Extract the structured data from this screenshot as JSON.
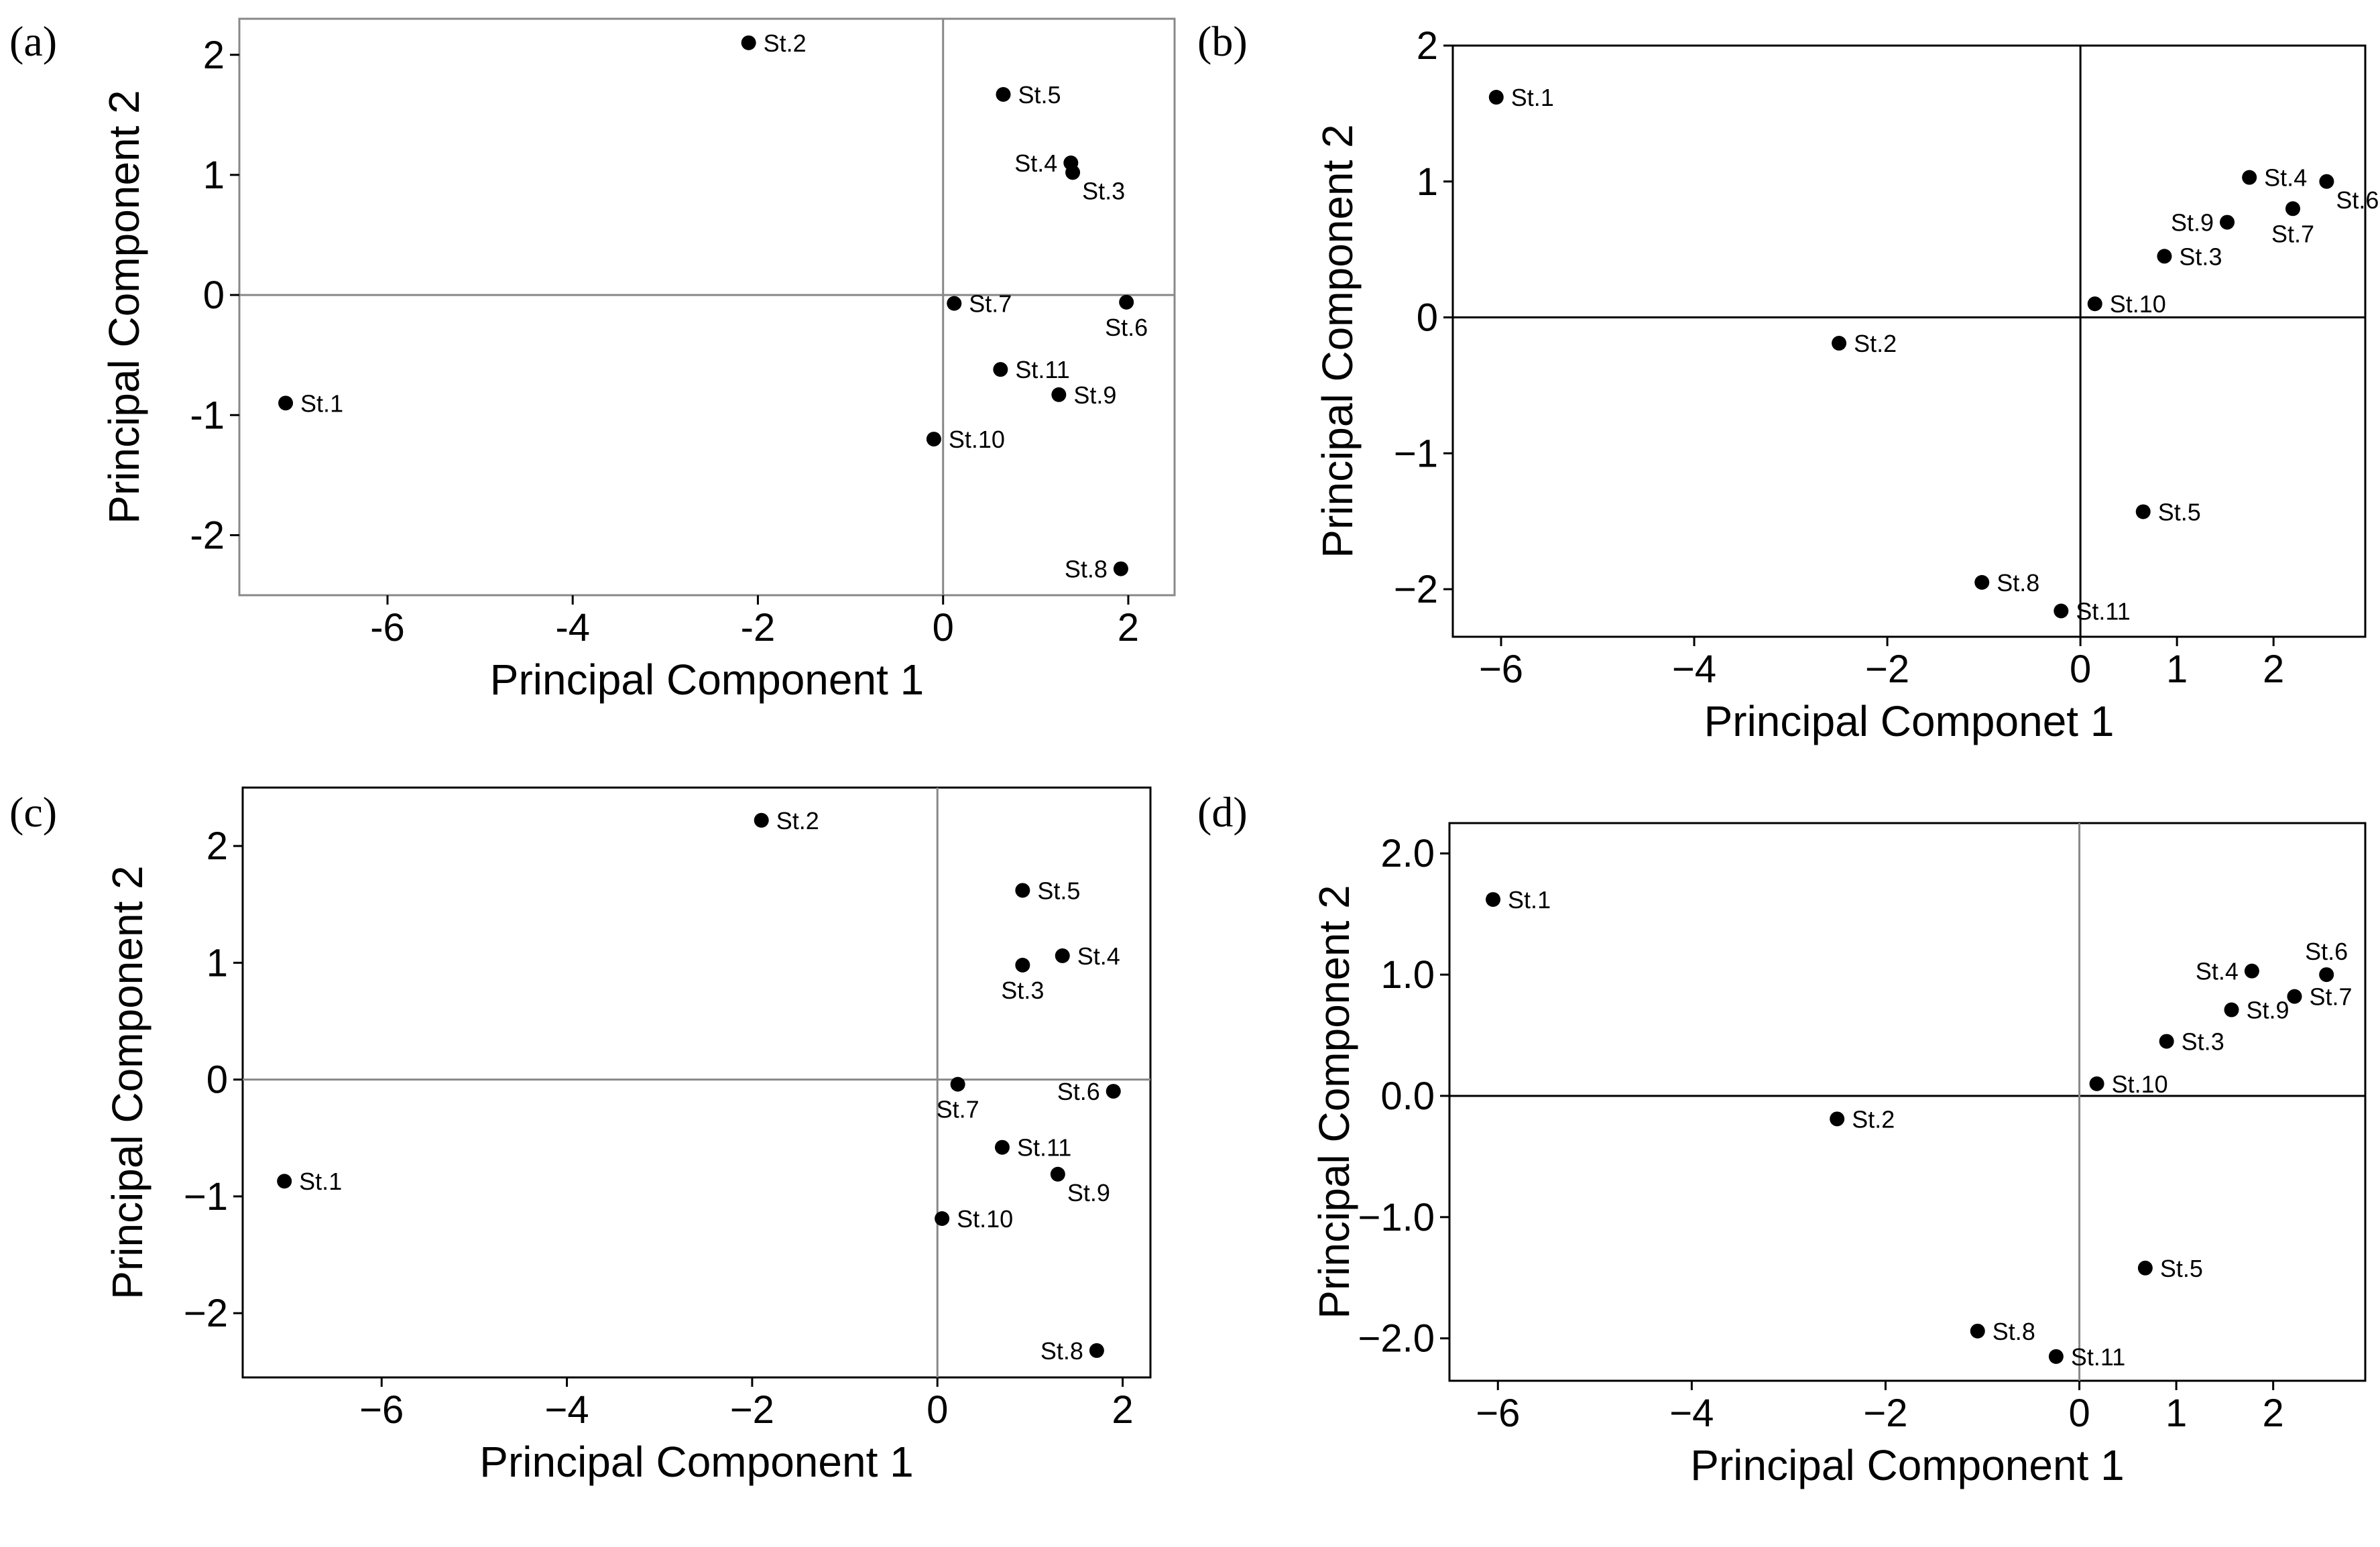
{
  "chart_data": [
    {
      "type": "scatter",
      "panel_label": "(a)",
      "xlabel": "Principal Component 1",
      "ylabel": "Principal Component 2",
      "xlim": [
        -7.6,
        2.5
      ],
      "ylim": [
        -2.5,
        2.3
      ],
      "xticks": [
        -6,
        -4,
        -2,
        0,
        2
      ],
      "yticks": [
        -2,
        -1,
        0,
        1,
        2
      ],
      "xtick_labels": [
        "-6",
        "-4",
        "-2",
        "0",
        "2"
      ],
      "ytick_labels": [
        "-2",
        "-1",
        "0",
        "1",
        "2"
      ],
      "frame_color": "#888888",
      "ref_line_color": "#888888",
      "points": [
        {
          "label": "St.1",
          "x": -7.1,
          "y": -0.9,
          "side": "right"
        },
        {
          "label": "St.2",
          "x": -2.1,
          "y": 2.1,
          "side": "right"
        },
        {
          "label": "St.5",
          "x": 0.65,
          "y": 1.67,
          "side": "right"
        },
        {
          "label": "St.4",
          "x": 1.38,
          "y": 1.1,
          "side": "left"
        },
        {
          "label": "St.3",
          "x": 1.4,
          "y": 1.02,
          "side": "right-below"
        },
        {
          "label": "St.7",
          "x": 0.12,
          "y": -0.07,
          "side": "right"
        },
        {
          "label": "St.6",
          "x": 1.98,
          "y": -0.06,
          "side": "below"
        },
        {
          "label": "St.11",
          "x": 0.62,
          "y": -0.62,
          "side": "right"
        },
        {
          "label": "St.9",
          "x": 1.25,
          "y": -0.83,
          "side": "right"
        },
        {
          "label": "St.10",
          "x": -0.1,
          "y": -1.2,
          "side": "right"
        },
        {
          "label": "St.8",
          "x": 1.92,
          "y": -2.28,
          "side": "left"
        }
      ]
    },
    {
      "type": "scatter",
      "panel_label": "(b)",
      "xlabel": "Principal Componet 1",
      "ylabel": "Principal Component 2",
      "xlim": [
        -6.5,
        2.95
      ],
      "ylim": [
        -2.35,
        2.0
      ],
      "xticks": [
        -6,
        -4,
        -2,
        0,
        1,
        2
      ],
      "yticks": [
        -2,
        -1,
        0,
        1,
        2
      ],
      "xtick_labels": [
        "−6",
        "−4",
        "−2",
        "0",
        "1",
        "2"
      ],
      "ytick_labels": [
        "−2",
        "−1",
        "0",
        "1",
        "2"
      ],
      "frame_color": "#000000",
      "ref_line_color": "#000000",
      "points": [
        {
          "label": "St.1",
          "x": -6.05,
          "y": 1.62,
          "side": "right"
        },
        {
          "label": "St.4",
          "x": 1.75,
          "y": 1.03,
          "side": "right"
        },
        {
          "label": "St.6",
          "x": 2.55,
          "y": 1.0,
          "side": "right-below"
        },
        {
          "label": "St.7",
          "x": 2.2,
          "y": 0.8,
          "side": "below"
        },
        {
          "label": "St.9",
          "x": 1.52,
          "y": 0.7,
          "side": "left"
        },
        {
          "label": "St.3",
          "x": 0.87,
          "y": 0.45,
          "side": "right"
        },
        {
          "label": "St.10",
          "x": 0.15,
          "y": 0.1,
          "side": "right"
        },
        {
          "label": "St.2",
          "x": -2.5,
          "y": -0.19,
          "side": "right"
        },
        {
          "label": "St.5",
          "x": 0.65,
          "y": -1.43,
          "side": "right"
        },
        {
          "label": "St.8",
          "x": -1.02,
          "y": -1.95,
          "side": "right"
        },
        {
          "label": "St.11",
          "x": -0.2,
          "y": -2.16,
          "side": "right"
        }
      ]
    },
    {
      "type": "scatter",
      "panel_label": "(c)",
      "xlabel": "Principal Component 1",
      "ylabel": "Principal Component 2",
      "xlim": [
        -7.5,
        2.3
      ],
      "ylim": [
        -2.55,
        2.5
      ],
      "xticks": [
        -6,
        -4,
        -2,
        0,
        2
      ],
      "yticks": [
        -2,
        -1,
        0,
        1,
        2
      ],
      "xtick_labels": [
        "−6",
        "−4",
        "−2",
        "0",
        "2"
      ],
      "ytick_labels": [
        "−2",
        "−1",
        "0",
        "1",
        "2"
      ],
      "frame_color": "#000000",
      "ref_line_color": "#888888",
      "points": [
        {
          "label": "St.1",
          "x": -7.05,
          "y": -0.87,
          "side": "right"
        },
        {
          "label": "St.2",
          "x": -1.9,
          "y": 2.22,
          "side": "right"
        },
        {
          "label": "St.5",
          "x": 0.92,
          "y": 1.62,
          "side": "right"
        },
        {
          "label": "St.4",
          "x": 1.35,
          "y": 1.06,
          "side": "right"
        },
        {
          "label": "St.3",
          "x": 0.92,
          "y": 0.98,
          "side": "below"
        },
        {
          "label": "St.7",
          "x": 0.22,
          "y": -0.04,
          "side": "below"
        },
        {
          "label": "St.6",
          "x": 1.9,
          "y": -0.1,
          "side": "left"
        },
        {
          "label": "St.11",
          "x": 0.7,
          "y": -0.58,
          "side": "right"
        },
        {
          "label": "St.9",
          "x": 1.3,
          "y": -0.81,
          "side": "right-below"
        },
        {
          "label": "St.10",
          "x": 0.05,
          "y": -1.19,
          "side": "right"
        },
        {
          "label": "St.8",
          "x": 1.72,
          "y": -2.32,
          "side": "left"
        }
      ]
    },
    {
      "type": "scatter",
      "panel_label": "(d)",
      "xlabel": "Principal Component 1",
      "ylabel": "Principal Component 2",
      "xlim": [
        -6.5,
        2.95
      ],
      "ylim": [
        -2.35,
        2.25
      ],
      "xticks": [
        -6,
        -4,
        -2,
        0,
        1,
        2
      ],
      "yticks": [
        -2,
        -1,
        0,
        1,
        2
      ],
      "xtick_labels": [
        "−6",
        "−4",
        "−2",
        "0",
        "1",
        "2"
      ],
      "ytick_labels": [
        "−2.0",
        "−1.0",
        "0.0",
        "1.0",
        "2.0"
      ],
      "frame_color": "#000000",
      "ref_line_color": "#000000",
      "vline_color": "#888888",
      "points": [
        {
          "label": "St.1",
          "x": -6.05,
          "y": 1.62,
          "side": "right"
        },
        {
          "label": "St.4",
          "x": 1.78,
          "y": 1.03,
          "side": "left"
        },
        {
          "label": "St.6",
          "x": 2.55,
          "y": 1.0,
          "side": "above"
        },
        {
          "label": "St.7",
          "x": 2.22,
          "y": 0.82,
          "side": "right"
        },
        {
          "label": "St.9",
          "x": 1.57,
          "y": 0.71,
          "side": "right"
        },
        {
          "label": "St.3",
          "x": 0.9,
          "y": 0.45,
          "side": "right"
        },
        {
          "label": "St.10",
          "x": 0.18,
          "y": 0.1,
          "side": "right"
        },
        {
          "label": "St.2",
          "x": -2.5,
          "y": -0.19,
          "side": "right"
        },
        {
          "label": "St.5",
          "x": 0.68,
          "y": -1.42,
          "side": "right"
        },
        {
          "label": "St.8",
          "x": -1.05,
          "y": -1.94,
          "side": "right"
        },
        {
          "label": "St.11",
          "x": -0.24,
          "y": -2.15,
          "side": "right"
        }
      ]
    }
  ]
}
